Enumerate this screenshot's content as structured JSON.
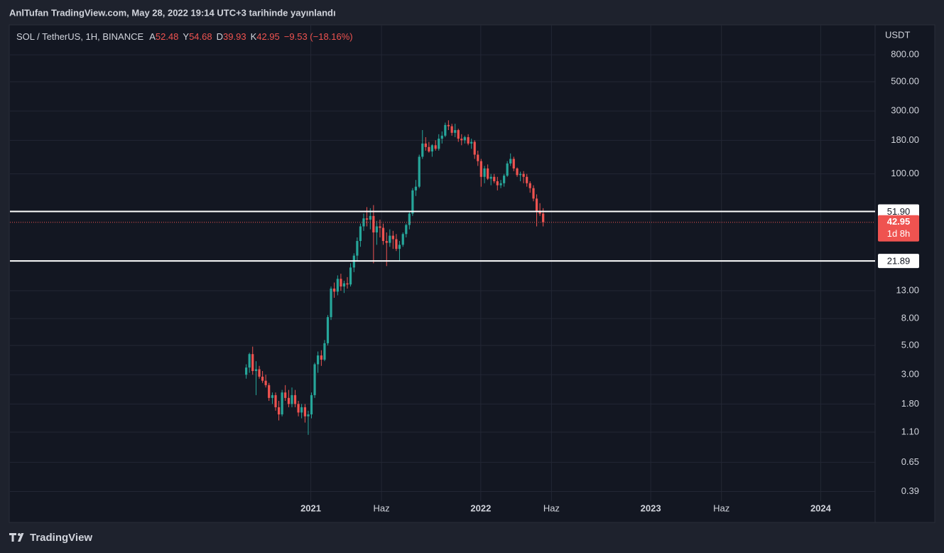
{
  "header": {
    "published": "AnlTufan TradingView.com, May 28, 2022 19:14 UTC+3 tarihinde yayınlandı"
  },
  "footer": {
    "brand": "TradingView"
  },
  "chart_data": {
    "type": "candlestick",
    "symbol": "SOL / TetherUS, 1H, BINANCE",
    "ohlc_legend": [
      {
        "key": "A",
        "label": "52.48"
      },
      {
        "key": "Y",
        "label": "54.68"
      },
      {
        "key": "D",
        "label": "39.93"
      },
      {
        "key": "K",
        "label": "42.95"
      }
    ],
    "change": "−9.53 (−18.16%)",
    "y_unit": "USDT",
    "log_scale": true,
    "grid": true,
    "up_color": "#26a69a",
    "down_color": "#ef5350",
    "xlim": [
      2019.23,
      2024.32
    ],
    "xticks": [
      {
        "value": 2021,
        "label": "2021"
      },
      {
        "value": 2021.416,
        "label": "Haz"
      },
      {
        "value": 2022,
        "label": "2022"
      },
      {
        "value": 2022.416,
        "label": "Haz"
      },
      {
        "value": 2023,
        "label": "2023"
      },
      {
        "value": 2023.416,
        "label": "Haz"
      },
      {
        "value": 2024,
        "label": "2024"
      }
    ],
    "ylim": [
      0.33,
      1350
    ],
    "yticks": [
      {
        "value": 800,
        "label": "800.00"
      },
      {
        "value": 500,
        "label": "500.00"
      },
      {
        "value": 300,
        "label": "300.00"
      },
      {
        "value": 180,
        "label": "180.00"
      },
      {
        "value": 100,
        "label": "100.00"
      },
      {
        "value": 13,
        "label": "13.00"
      },
      {
        "value": 8,
        "label": "8.00"
      },
      {
        "value": 5,
        "label": "5.00"
      },
      {
        "value": 3,
        "label": "3.00"
      },
      {
        "value": 1.8,
        "label": "1.80"
      },
      {
        "value": 1.1,
        "label": "1.10"
      },
      {
        "value": 0.65,
        "label": "0.65"
      },
      {
        "value": 0.39,
        "label": "0.39"
      }
    ],
    "levels": [
      {
        "value": 51.9,
        "label": "51.90",
        "color": "#ffffff"
      },
      {
        "value": 21.89,
        "label": "21.89",
        "color": "#ffffff"
      }
    ],
    "last_price": {
      "value": 42.95,
      "label": "42.95",
      "countdown": "1d 8h",
      "color": "#ef5350"
    },
    "x": [
      2020.62,
      2020.639,
      2020.658,
      2020.678,
      2020.697,
      2020.716,
      2020.735,
      2020.754,
      2020.774,
      2020.793,
      2020.812,
      2020.831,
      2020.85,
      2020.87,
      2020.889,
      2020.908,
      2020.927,
      2020.946,
      2020.966,
      2020.985,
      2021.004,
      2021.023,
      2021.042,
      2021.062,
      2021.081,
      2021.1,
      2021.119,
      2021.138,
      2021.158,
      2021.177,
      2021.196,
      2021.215,
      2021.234,
      2021.254,
      2021.273,
      2021.292,
      2021.311,
      2021.33,
      2021.35,
      2021.369,
      2021.388,
      2021.407,
      2021.426,
      2021.446,
      2021.465,
      2021.484,
      2021.503,
      2021.522,
      2021.542,
      2021.561,
      2021.58,
      2021.599,
      2021.618,
      2021.638,
      2021.657,
      2021.676,
      2021.695,
      2021.714,
      2021.734,
      2021.753,
      2021.772,
      2021.791,
      2021.81,
      2021.83,
      2021.849,
      2021.868,
      2021.887,
      2021.906,
      2021.926,
      2021.945,
      2021.964,
      2021.983,
      2022.002,
      2022.022,
      2022.041,
      2022.06,
      2022.079,
      2022.098,
      2022.118,
      2022.137,
      2022.156,
      2022.175,
      2022.194,
      2022.214,
      2022.233,
      2022.252,
      2022.271,
      2022.29,
      2022.31,
      2022.329,
      2022.348,
      2022.367
    ],
    "open": [
      3.0,
      3.4,
      4.3,
      3.2,
      3.3,
      2.9,
      2.7,
      2.5,
      2.0,
      2.1,
      1.7,
      1.5,
      2.2,
      2.0,
      1.8,
      2.1,
      1.8,
      1.55,
      1.7,
      1.45,
      1.5,
      2.1,
      3.6,
      4.2,
      3.9,
      5.2,
      8.2,
      13.5,
      12.8,
      16,
      14,
      14.8,
      14.5,
      19.5,
      24,
      31,
      40,
      46,
      45,
      48,
      36,
      40,
      39,
      31,
      30,
      34,
      32,
      27,
      29,
      35,
      41,
      50,
      75,
      80,
      135,
      170,
      160,
      148,
      165,
      155,
      185,
      195,
      235,
      230,
      205,
      215,
      185,
      180,
      190,
      170,
      175,
      140,
      125,
      95,
      110,
      92,
      95,
      88,
      82,
      85,
      97,
      120,
      130,
      110,
      98,
      100,
      95,
      85,
      78,
      65,
      52,
      50
    ],
    "high": [
      3.6,
      4.4,
      4.9,
      3.8,
      3.5,
      3.2,
      3.0,
      2.6,
      2.2,
      2.2,
      1.9,
      2.3,
      2.5,
      2.3,
      2.4,
      2.3,
      1.9,
      1.8,
      1.8,
      1.6,
      2.2,
      3.7,
      4.5,
      4.6,
      5.5,
      8.5,
      14,
      15,
      17,
      17.5,
      15.5,
      16.5,
      21,
      25,
      33,
      42,
      50,
      56,
      55,
      58,
      44,
      45,
      42,
      36,
      38,
      37,
      35,
      31,
      36,
      42,
      52,
      78,
      90,
      140,
      215,
      190,
      175,
      168,
      180,
      200,
      210,
      245,
      255,
      240,
      240,
      220,
      200,
      195,
      200,
      185,
      180,
      150,
      130,
      115,
      118,
      100,
      100,
      95,
      90,
      100,
      125,
      143,
      135,
      112,
      104,
      105,
      100,
      88,
      82,
      70,
      60,
      55
    ],
    "low": [
      2.8,
      3.1,
      3.0,
      2.1,
      2.8,
      2.6,
      2.4,
      1.9,
      1.8,
      1.6,
      1.35,
      1.45,
      1.9,
      1.7,
      1.7,
      1.7,
      1.45,
      1.4,
      1.3,
      1.05,
      1.4,
      2.0,
      3.1,
      3.5,
      3.8,
      5.0,
      7.8,
      11.5,
      12,
      13,
      12.5,
      13.5,
      14,
      18,
      22,
      28,
      37,
      40,
      38,
      21,
      29,
      33,
      29,
      20,
      28,
      27,
      26,
      22,
      28,
      33,
      38,
      48,
      68,
      78,
      130,
      150,
      145,
      135,
      150,
      150,
      170,
      190,
      215,
      195,
      190,
      175,
      165,
      170,
      165,
      155,
      130,
      115,
      80,
      85,
      90,
      82,
      85,
      75,
      78,
      80,
      95,
      115,
      105,
      95,
      88,
      85,
      80,
      72,
      62,
      40,
      48,
      40
    ],
    "close": [
      3.4,
      4.3,
      3.2,
      3.3,
      2.9,
      2.7,
      2.5,
      2.0,
      2.1,
      1.7,
      1.5,
      2.2,
      2.0,
      1.8,
      2.1,
      1.8,
      1.55,
      1.7,
      1.45,
      1.5,
      2.1,
      3.6,
      4.2,
      3.9,
      5.2,
      8.2,
      13.5,
      12.8,
      16,
      14,
      14.8,
      14.5,
      19.5,
      24,
      31,
      40,
      46,
      45,
      48,
      36,
      40,
      39,
      31,
      30,
      34,
      32,
      27,
      29,
      35,
      41,
      50,
      75,
      80,
      135,
      170,
      160,
      148,
      165,
      155,
      185,
      195,
      235,
      230,
      205,
      215,
      185,
      180,
      190,
      170,
      175,
      140,
      125,
      95,
      110,
      92,
      95,
      88,
      82,
      85,
      97,
      120,
      130,
      110,
      98,
      100,
      95,
      85,
      78,
      65,
      52,
      50,
      43
    ]
  }
}
